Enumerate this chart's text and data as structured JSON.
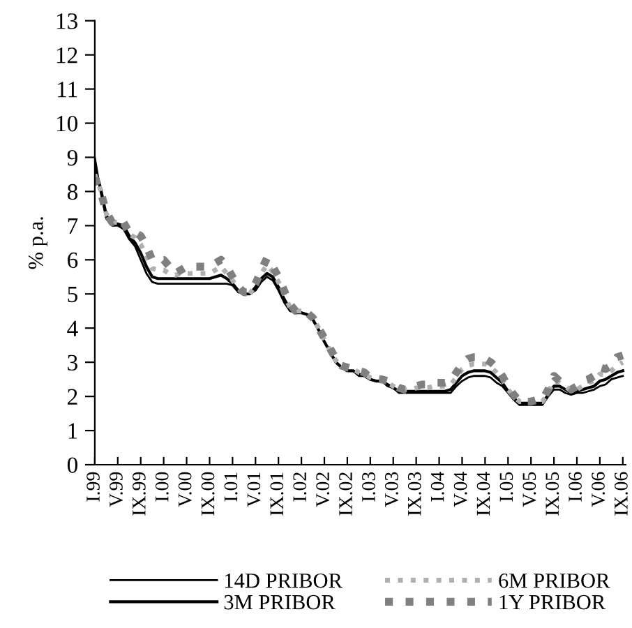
{
  "chart_data": {
    "type": "line",
    "ylabel": "% p.a.",
    "ylim": [
      0,
      13
    ],
    "yticks": [
      0,
      1,
      2,
      3,
      4,
      5,
      6,
      7,
      8,
      9,
      10,
      11,
      12,
      13
    ],
    "grid": false,
    "legend": "bottom",
    "marker": "none",
    "categories": [
      "I.99",
      null,
      null,
      null,
      "V.99",
      null,
      null,
      null,
      "IX.99",
      null,
      null,
      null,
      "I.00",
      null,
      null,
      null,
      "V.00",
      null,
      null,
      null,
      "IX.00",
      null,
      null,
      null,
      "I.01",
      null,
      null,
      null,
      "V.01",
      null,
      null,
      null,
      "IX.01",
      null,
      null,
      null,
      "I.02",
      null,
      null,
      null,
      "V.02",
      null,
      null,
      null,
      "IX.02",
      null,
      null,
      null,
      "I.03",
      null,
      null,
      null,
      "V.03",
      null,
      null,
      null,
      "IX.03",
      null,
      null,
      null,
      "I.04",
      null,
      null,
      null,
      "V.04",
      null,
      null,
      null,
      "IX.04",
      null,
      null,
      null,
      "I.05",
      null,
      null,
      null,
      "V.05",
      null,
      null,
      null,
      "IX.05",
      null,
      null,
      null,
      "I.06",
      null,
      null,
      null,
      "V.06",
      null,
      null,
      null,
      "IX.06"
    ],
    "series": [
      {
        "name": "14D PRIBOR",
        "color": "#000000",
        "line_style": "solid",
        "values": [
          9.0,
          8.0,
          7.2,
          7.0,
          7.0,
          6.9,
          6.6,
          6.4,
          6.0,
          5.6,
          5.35,
          5.3,
          5.3,
          5.3,
          5.3,
          5.3,
          5.3,
          5.3,
          5.3,
          5.3,
          5.3,
          5.3,
          5.3,
          5.3,
          5.25,
          5.05,
          5.0,
          5.0,
          5.1,
          5.35,
          5.5,
          5.4,
          5.1,
          4.75,
          4.5,
          4.45,
          4.45,
          4.4,
          4.25,
          3.95,
          3.6,
          3.3,
          3.0,
          2.85,
          2.75,
          2.75,
          2.6,
          2.6,
          2.5,
          2.45,
          2.45,
          2.3,
          2.25,
          2.1,
          2.1,
          2.1,
          2.1,
          2.1,
          2.1,
          2.1,
          2.1,
          2.1,
          2.1,
          2.3,
          2.45,
          2.55,
          2.6,
          2.6,
          2.6,
          2.55,
          2.4,
          2.3,
          2.1,
          1.9,
          1.75,
          1.75,
          1.75,
          1.75,
          1.75,
          2.0,
          2.2,
          2.2,
          2.1,
          2.05,
          2.1,
          2.1,
          2.15,
          2.2,
          2.3,
          2.35,
          2.5,
          2.55,
          2.6
        ]
      },
      {
        "name": "3M PRIBOR",
        "color": "#000000",
        "line_style": "solid",
        "values": [
          8.7,
          8.1,
          7.3,
          7.05,
          7.05,
          7.0,
          6.7,
          6.5,
          6.2,
          5.8,
          5.5,
          5.45,
          5.45,
          5.45,
          5.45,
          5.45,
          5.45,
          5.45,
          5.45,
          5.45,
          5.45,
          5.5,
          5.55,
          5.45,
          5.3,
          5.1,
          5.0,
          5.0,
          5.2,
          5.45,
          5.6,
          5.5,
          5.2,
          4.85,
          4.55,
          4.45,
          4.45,
          4.4,
          4.25,
          3.95,
          3.6,
          3.3,
          3.0,
          2.85,
          2.75,
          2.75,
          2.65,
          2.6,
          2.5,
          2.45,
          2.45,
          2.35,
          2.25,
          2.15,
          2.15,
          2.15,
          2.15,
          2.15,
          2.15,
          2.15,
          2.15,
          2.15,
          2.2,
          2.4,
          2.6,
          2.7,
          2.75,
          2.75,
          2.75,
          2.7,
          2.55,
          2.4,
          2.15,
          1.95,
          1.8,
          1.8,
          1.8,
          1.8,
          1.8,
          2.05,
          2.3,
          2.3,
          2.2,
          2.1,
          2.15,
          2.2,
          2.25,
          2.3,
          2.45,
          2.5,
          2.6,
          2.7,
          2.75
        ]
      },
      {
        "name": "6M PRIBOR",
        "color": "#b0b0b0",
        "line_style": "dotted",
        "values": [
          8.5,
          8.05,
          7.35,
          7.1,
          7.1,
          7.05,
          6.75,
          6.65,
          6.45,
          6.1,
          5.75,
          5.7,
          5.7,
          5.6,
          5.55,
          5.6,
          5.6,
          5.6,
          5.6,
          5.6,
          5.6,
          5.7,
          5.8,
          5.6,
          5.4,
          5.15,
          5.0,
          5.0,
          5.25,
          5.6,
          5.85,
          5.65,
          5.35,
          5.0,
          4.6,
          4.5,
          4.5,
          4.45,
          4.3,
          4.0,
          3.65,
          3.35,
          3.05,
          2.9,
          2.8,
          2.8,
          2.7,
          2.65,
          2.55,
          2.5,
          2.5,
          2.4,
          2.3,
          2.2,
          2.2,
          2.2,
          2.25,
          2.25,
          2.25,
          2.3,
          2.3,
          2.3,
          2.35,
          2.55,
          2.8,
          2.9,
          2.95,
          2.95,
          2.95,
          2.85,
          2.7,
          2.5,
          2.2,
          2.0,
          1.85,
          1.85,
          1.85,
          1.85,
          1.85,
          2.1,
          2.45,
          2.4,
          2.3,
          2.15,
          2.2,
          2.3,
          2.4,
          2.45,
          2.65,
          2.65,
          2.75,
          2.9,
          3.0
        ]
      },
      {
        "name": "1Y PRIBOR",
        "color": "#808080",
        "line_style": "dotted",
        "values": [
          8.4,
          8.0,
          7.4,
          7.1,
          7.2,
          7.1,
          6.8,
          6.8,
          6.7,
          6.4,
          6.0,
          6.0,
          6.0,
          5.8,
          5.6,
          5.7,
          5.8,
          5.8,
          5.8,
          5.8,
          5.8,
          5.9,
          6.0,
          5.8,
          5.5,
          5.2,
          5.05,
          5.05,
          5.3,
          5.7,
          6.05,
          5.8,
          5.5,
          5.1,
          4.7,
          4.5,
          4.5,
          4.45,
          4.3,
          4.0,
          3.7,
          3.4,
          3.1,
          2.9,
          2.85,
          2.8,
          2.75,
          2.7,
          2.55,
          2.5,
          2.5,
          2.45,
          2.35,
          2.25,
          2.2,
          2.25,
          2.3,
          2.35,
          2.35,
          2.4,
          2.4,
          2.4,
          2.45,
          2.7,
          2.95,
          3.1,
          3.15,
          3.15,
          3.1,
          3.0,
          2.85,
          2.6,
          2.3,
          2.05,
          1.85,
          1.85,
          1.85,
          1.9,
          1.9,
          2.2,
          2.6,
          2.45,
          2.35,
          2.2,
          2.3,
          2.45,
          2.5,
          2.6,
          2.85,
          2.8,
          2.9,
          3.15,
          3.2
        ]
      }
    ]
  }
}
